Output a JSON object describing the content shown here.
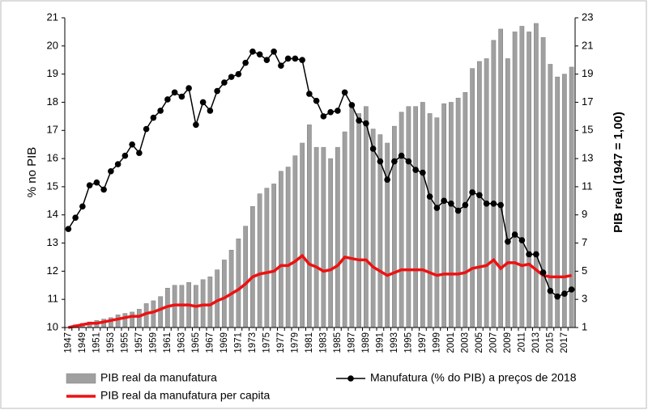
{
  "chart_data": {
    "type": "bar",
    "categories": [
      "1947",
      null,
      "1949",
      null,
      "1951",
      null,
      "1953",
      null,
      "1955",
      null,
      "1957",
      null,
      "1959",
      null,
      "1961",
      null,
      "1963",
      null,
      "1965",
      null,
      "1967",
      null,
      "1969",
      null,
      "1971",
      null,
      "1973",
      null,
      "1975",
      null,
      "1977",
      null,
      "1979",
      null,
      "1981",
      null,
      "1983",
      null,
      "1985",
      null,
      "1987",
      null,
      "1989",
      null,
      "1991",
      null,
      "1993",
      null,
      "1995",
      null,
      "1997",
      null,
      "1999",
      null,
      "2001",
      null,
      "2003",
      null,
      "2005",
      null,
      "2007",
      null,
      "2009",
      null,
      "2011",
      null,
      "2013",
      null,
      "2015",
      null,
      "2017",
      null
    ],
    "ylabel": "% no PIB",
    "y2label": "PIB real (1947 = 1,00)",
    "ylim": [
      10,
      21
    ],
    "yticks": [
      10,
      11,
      12,
      13,
      14,
      15,
      16,
      17,
      18,
      19,
      20,
      21
    ],
    "y2lim": [
      1,
      23
    ],
    "y2ticks": [
      1,
      3,
      5,
      7,
      9,
      11,
      13,
      15,
      17,
      19,
      21,
      23
    ],
    "grid": false,
    "legend": "bottom",
    "series": [
      {
        "name": "PIB real da manufatura",
        "type": "bar",
        "axis": "y2",
        "color": "#a0a0a0",
        "values": [
          1.0,
          1.2,
          1.3,
          1.4,
          1.5,
          1.6,
          1.7,
          1.9,
          2.0,
          2.1,
          2.3,
          2.7,
          2.9,
          3.2,
          3.8,
          4.0,
          4.0,
          4.2,
          4.0,
          4.4,
          4.6,
          5.1,
          5.8,
          6.5,
          7.3,
          8.2,
          9.6,
          10.5,
          10.9,
          11.2,
          12.1,
          12.4,
          13.2,
          14.1,
          15.4,
          13.8,
          13.8,
          13.0,
          13.8,
          14.9,
          16.6,
          16.2,
          16.7,
          15.1,
          14.7,
          14.1,
          15.3,
          16.3,
          16.7,
          16.7,
          17.0,
          16.2,
          15.9,
          16.9,
          17.0,
          17.3,
          17.7,
          19.4,
          19.9,
          20.1,
          21.4,
          22.2,
          20.1,
          22.0,
          22.4,
          22.0,
          22.6,
          21.6,
          19.7,
          18.8,
          19.0,
          19.5
        ]
      },
      {
        "name": "PIB real da manufatura per capita",
        "type": "line",
        "axis": "y2",
        "color": "#ee1111",
        "values": [
          1.0,
          1.1,
          1.2,
          1.3,
          1.3,
          1.4,
          1.5,
          1.6,
          1.7,
          1.8,
          1.8,
          2.0,
          2.1,
          2.3,
          2.5,
          2.6,
          2.6,
          2.6,
          2.5,
          2.6,
          2.6,
          2.9,
          3.1,
          3.4,
          3.7,
          4.1,
          4.6,
          4.8,
          4.9,
          5.0,
          5.4,
          5.4,
          5.7,
          6.1,
          5.5,
          5.3,
          5.0,
          5.1,
          5.4,
          6.0,
          5.9,
          5.8,
          5.8,
          5.3,
          5.0,
          4.7,
          4.9,
          5.1,
          5.1,
          5.1,
          5.1,
          4.9,
          4.7,
          4.8,
          4.8,
          4.8,
          4.9,
          5.2,
          5.3,
          5.4,
          5.8,
          5.2,
          5.6,
          5.6,
          5.4,
          5.5,
          5.1,
          4.7,
          4.6,
          4.6,
          4.6,
          4.7
        ]
      },
      {
        "name": "Manufatura (% do PIB) a preços de 2018",
        "type": "line",
        "axis": "y",
        "color": "#000000",
        "marker": "circle",
        "values": [
          13.5,
          13.9,
          14.3,
          15.05,
          15.15,
          14.9,
          15.55,
          15.8,
          16.1,
          16.5,
          16.2,
          17.05,
          17.45,
          17.7,
          18.1,
          18.35,
          18.2,
          18.5,
          17.2,
          18.0,
          17.7,
          18.4,
          18.7,
          18.9,
          19.0,
          19.4,
          19.8,
          19.7,
          19.5,
          19.8,
          19.3,
          19.55,
          19.55,
          19.5,
          18.3,
          18.05,
          17.5,
          17.65,
          17.7,
          18.35,
          17.9,
          17.35,
          17.25,
          16.35,
          15.9,
          15.25,
          15.9,
          16.1,
          15.9,
          15.6,
          15.5,
          14.65,
          14.25,
          14.5,
          14.4,
          14.15,
          14.35,
          14.8,
          14.7,
          14.4,
          14.4,
          14.35,
          13.05,
          13.3,
          13.1,
          12.6,
          12.6,
          11.95,
          11.3,
          11.1,
          11.2,
          11.35
        ]
      }
    ]
  }
}
